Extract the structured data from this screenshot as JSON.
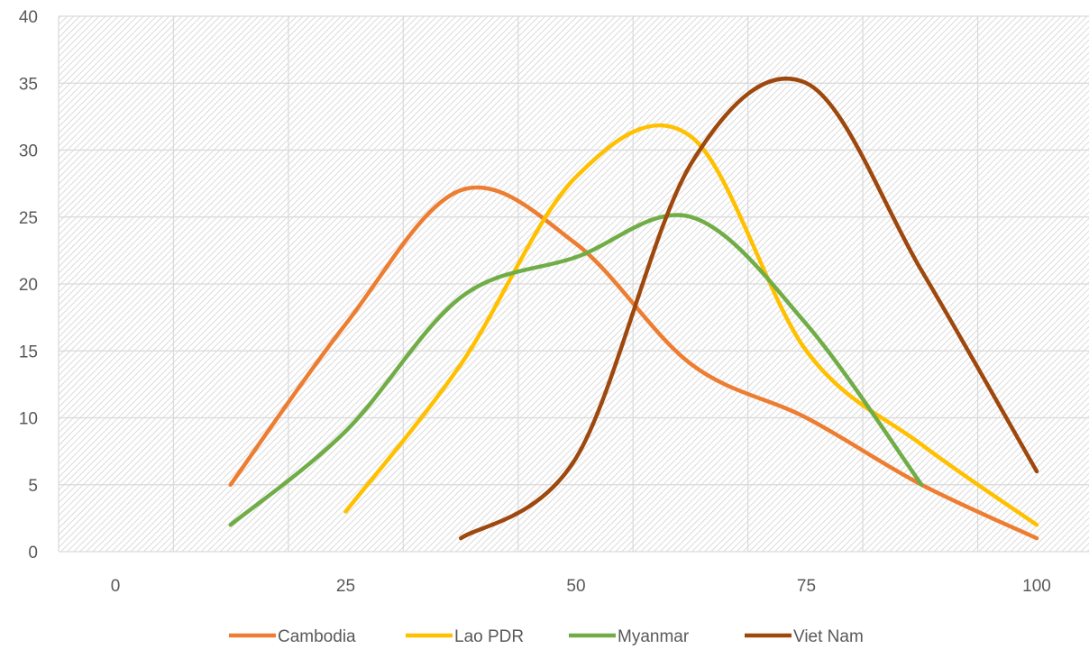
{
  "chart_data": {
    "type": "line",
    "title": "",
    "xlabel": "",
    "ylabel": "",
    "xlim": [
      0,
      100
    ],
    "ylim": [
      0,
      40
    ],
    "x_ticks": [
      "0",
      "25",
      "50",
      "75",
      "100"
    ],
    "y_ticks": [
      "0",
      "5",
      "10",
      "15",
      "20",
      "25",
      "30",
      "35",
      "40"
    ],
    "grid": true,
    "smooth": true,
    "legend_position": "bottom",
    "x": [
      12.5,
      25,
      37.5,
      50,
      62.5,
      75,
      87.5,
      100
    ],
    "series": [
      {
        "name": "Cambodia",
        "color": "#ED7D31",
        "values": [
          5,
          17,
          27,
          23,
          14,
          10,
          5,
          1
        ]
      },
      {
        "name": "Lao PDR",
        "color": "#FFC000",
        "values": [
          null,
          3,
          14,
          28,
          31,
          15,
          8,
          2
        ]
      },
      {
        "name": "Myanmar",
        "color": "#70AD47",
        "values": [
          2,
          9,
          19,
          22,
          25,
          17,
          5,
          null
        ]
      },
      {
        "name": "Viet Nam",
        "color": "#9E480E",
        "values": [
          null,
          null,
          1,
          7,
          29,
          35,
          21,
          6
        ]
      }
    ]
  }
}
